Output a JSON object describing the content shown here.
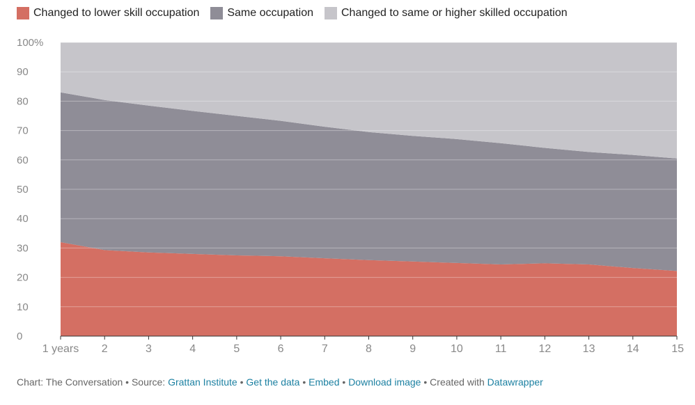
{
  "legend": [
    {
      "label": "Changed to lower skill occupation",
      "color": "#d46f63"
    },
    {
      "label": "Same occupation",
      "color": "#8f8d97"
    },
    {
      "label": "Changed to same or higher skilled occupation",
      "color": "#c6c5ca"
    }
  ],
  "chart_data": {
    "type": "area",
    "stacked": true,
    "x": [
      1,
      2,
      3,
      4,
      5,
      6,
      7,
      8,
      9,
      10,
      11,
      12,
      13,
      14,
      15
    ],
    "x_tick_labels": [
      "1 years",
      "2",
      "3",
      "4",
      "5",
      "6",
      "7",
      "8",
      "9",
      "10",
      "11",
      "12",
      "13",
      "14",
      "15"
    ],
    "y_tick_labels": [
      "0",
      "10",
      "20",
      "30",
      "40",
      "50",
      "60",
      "70",
      "80",
      "90",
      "100%"
    ],
    "ylim": [
      0,
      100
    ],
    "grid": true,
    "legend_position": "top-left",
    "series": [
      {
        "name": "Changed to lower skill occupation",
        "color": "#d46f63",
        "values": [
          32,
          29.3,
          28.5,
          28,
          27.5,
          27.2,
          26.5,
          25.9,
          25.4,
          24.9,
          24.4,
          24.8,
          24.4,
          23.2,
          22.2
        ]
      },
      {
        "name": "Same occupation",
        "color": "#8f8d97",
        "values": [
          51,
          51.1,
          50,
          48.7,
          47.5,
          46.1,
          44.8,
          43.6,
          42.8,
          42.2,
          41.3,
          39.3,
          38.3,
          38.5,
          38.3
        ]
      },
      {
        "name": "Changed to same or higher skilled occupation",
        "color": "#c6c5ca",
        "values": [
          17,
          19.6,
          21.5,
          23.3,
          25,
          26.7,
          28.7,
          30.5,
          31.8,
          32.9,
          34.3,
          35.9,
          37.3,
          38.3,
          39.5
        ]
      }
    ]
  },
  "footer": {
    "prefix": "Chart: The Conversation • Source: ",
    "source_link": "Grattan Institute",
    "sep1": " • ",
    "get_data_link": "Get the data",
    "sep2": " • ",
    "embed_link": "Embed",
    "sep3": "  • ",
    "download_link": "Download image",
    "created_text": " • Created with ",
    "datawrapper_link": "Datawrapper"
  }
}
